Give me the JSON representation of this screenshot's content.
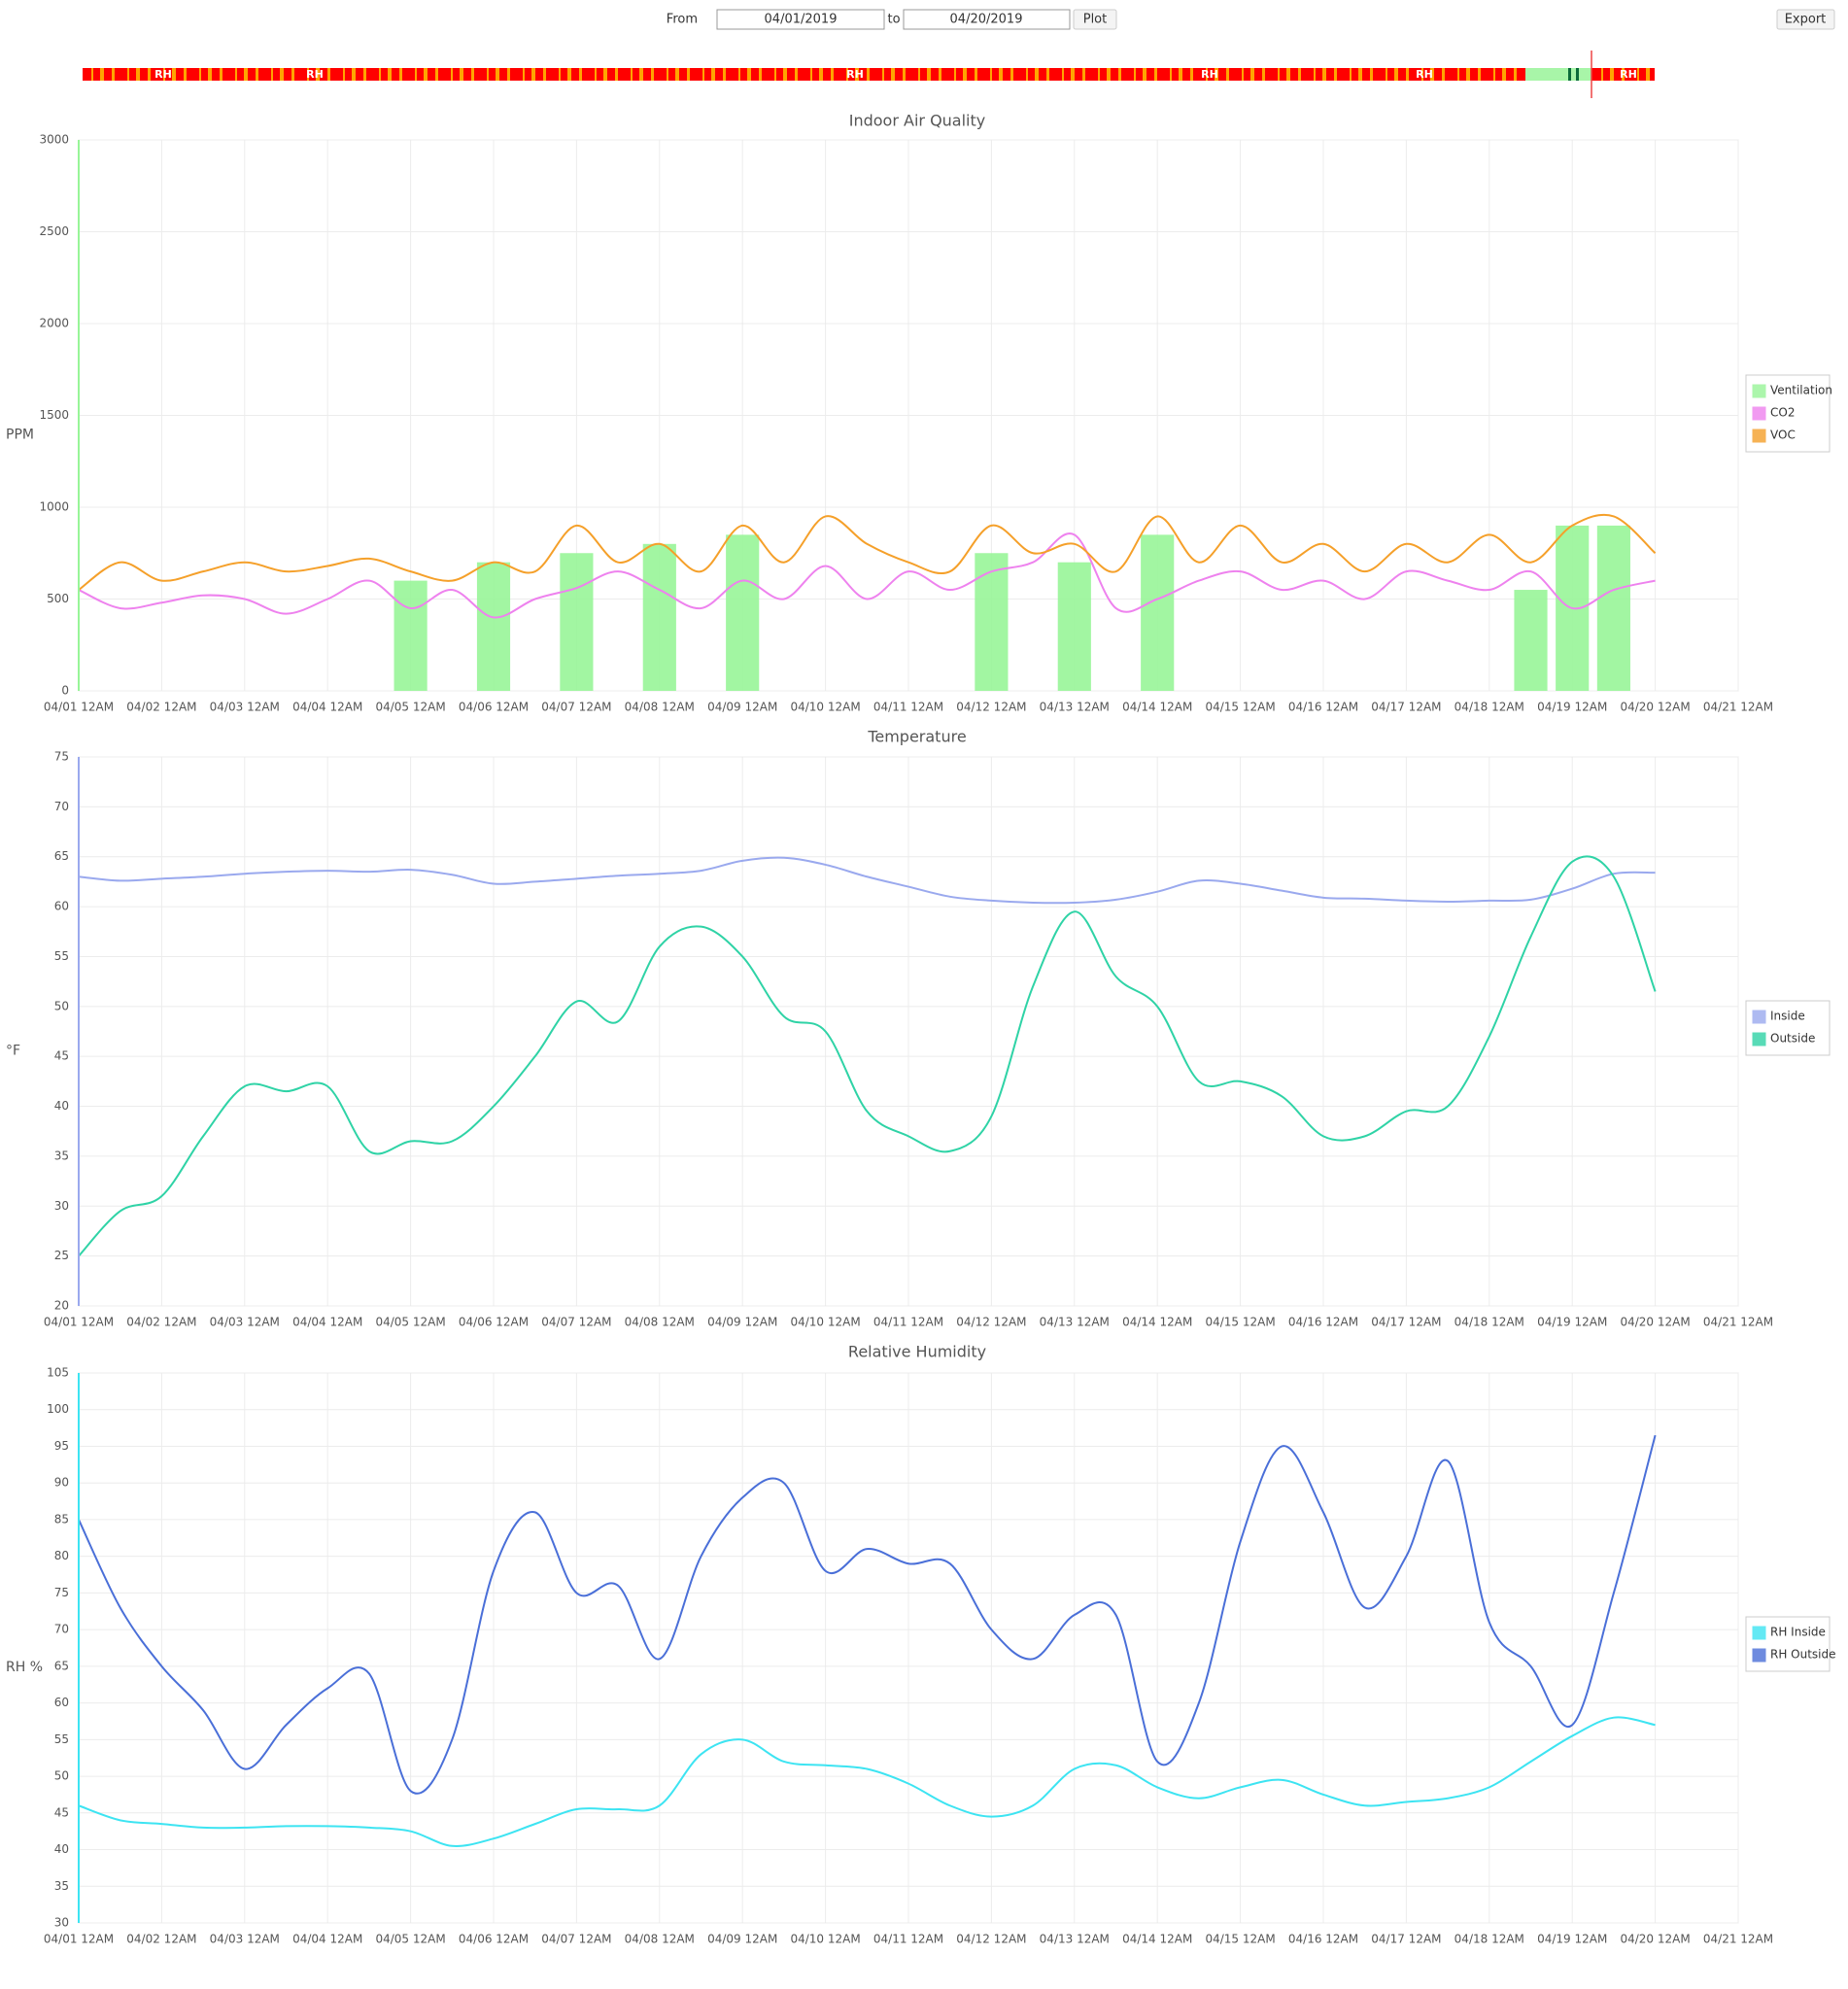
{
  "header": {
    "from_label": "From",
    "from_date": "04/01/2019",
    "to_label": "to",
    "to_date": "04/20/2019",
    "plot_button": "Plot",
    "export_button": "Export"
  },
  "status_bar": {
    "labels": [
      "RH",
      "RH",
      "RH",
      "RH",
      "RH",
      "RH"
    ]
  },
  "chart_data": [
    {
      "type": "line",
      "title": "Indoor Air Quality",
      "y_label": "PPM",
      "grid": true,
      "xlim": [
        "2019-04-01T00:00",
        "2019-04-21T00:00"
      ],
      "xticks": [
        {
          "value": "2019-04-01T00:00",
          "label": "04/01 12AM"
        },
        {
          "value": "2019-04-02T00:00",
          "label": "04/02 12AM"
        },
        {
          "value": "2019-04-03T00:00",
          "label": "04/03 12AM"
        },
        {
          "value": "2019-04-04T00:00",
          "label": "04/04 12AM"
        },
        {
          "value": "2019-04-05T00:00",
          "label": "04/05 12AM"
        },
        {
          "value": "2019-04-06T00:00",
          "label": "04/06 12AM"
        },
        {
          "value": "2019-04-07T00:00",
          "label": "04/07 12AM"
        },
        {
          "value": "2019-04-08T00:00",
          "label": "04/08 12AM"
        },
        {
          "value": "2019-04-09T00:00",
          "label": "04/09 12AM"
        },
        {
          "value": "2019-04-10T00:00",
          "label": "04/10 12AM"
        },
        {
          "value": "2019-04-11T00:00",
          "label": "04/11 12AM"
        },
        {
          "value": "2019-04-12T00:00",
          "label": "04/12 12AM"
        },
        {
          "value": "2019-04-13T00:00",
          "label": "04/13 12AM"
        },
        {
          "value": "2019-04-14T00:00",
          "label": "04/14 12AM"
        },
        {
          "value": "2019-04-15T00:00",
          "label": "04/15 12AM"
        },
        {
          "value": "2019-04-16T00:00",
          "label": "04/16 12AM"
        },
        {
          "value": "2019-04-17T00:00",
          "label": "04/17 12AM"
        },
        {
          "value": "2019-04-18T00:00",
          "label": "04/18 12AM"
        },
        {
          "value": "2019-04-19T00:00",
          "label": "04/19 12AM"
        },
        {
          "value": "2019-04-20T00:00",
          "label": "04/20 12AM"
        },
        {
          "value": "2019-04-21T00:00",
          "label": "04/21 12AM"
        }
      ],
      "ylim": [
        0,
        3000
      ],
      "yticks": [
        0,
        500,
        1000,
        1500,
        2000,
        2500,
        3000
      ],
      "x": [
        "2019-04-01T00:00",
        "2019-04-01T12:00",
        "2019-04-02T00:00",
        "2019-04-02T12:00",
        "2019-04-03T00:00",
        "2019-04-03T12:00",
        "2019-04-04T00:00",
        "2019-04-04T12:00",
        "2019-04-05T00:00",
        "2019-04-05T12:00",
        "2019-04-06T00:00",
        "2019-04-06T12:00",
        "2019-04-07T00:00",
        "2019-04-07T12:00",
        "2019-04-08T00:00",
        "2019-04-08T12:00",
        "2019-04-09T00:00",
        "2019-04-09T12:00",
        "2019-04-10T00:00",
        "2019-04-10T12:00",
        "2019-04-11T00:00",
        "2019-04-11T12:00",
        "2019-04-12T00:00",
        "2019-04-12T12:00",
        "2019-04-13T00:00",
        "2019-04-13T12:00",
        "2019-04-14T00:00",
        "2019-04-14T12:00",
        "2019-04-15T00:00",
        "2019-04-15T12:00",
        "2019-04-16T00:00",
        "2019-04-16T12:00",
        "2019-04-17T00:00",
        "2019-04-17T12:00",
        "2019-04-18T00:00",
        "2019-04-18T12:00",
        "2019-04-19T00:00",
        "2019-04-19T12:00",
        "2019-04-20T00:00"
      ],
      "series": [
        {
          "name": "Ventilation",
          "type": "area",
          "color": "#98f598",
          "values": [
            0,
            0,
            0,
            0,
            0,
            0,
            0,
            0,
            600,
            0,
            700,
            0,
            750,
            0,
            800,
            0,
            850,
            0,
            0,
            0,
            0,
            0,
            750,
            0,
            700,
            0,
            850,
            0,
            0,
            0,
            0,
            0,
            0,
            0,
            0,
            550,
            900,
            900,
            0
          ]
        },
        {
          "name": "CO2",
          "color": "#ee82ee",
          "values": [
            550,
            450,
            480,
            520,
            500,
            420,
            500,
            600,
            450,
            550,
            400,
            500,
            560,
            650,
            550,
            450,
            600,
            500,
            680,
            500,
            650,
            550,
            650,
            700,
            850,
            450,
            500,
            600,
            650,
            550,
            600,
            500,
            650,
            600,
            550,
            650,
            450,
            550,
            600
          ]
        },
        {
          "name": "VOC",
          "color": "#f5a02a",
          "values": [
            550,
            700,
            600,
            650,
            700,
            650,
            680,
            720,
            650,
            600,
            700,
            650,
            900,
            700,
            800,
            650,
            900,
            700,
            950,
            800,
            700,
            650,
            900,
            750,
            800,
            650,
            950,
            700,
            900,
            700,
            800,
            650,
            800,
            700,
            850,
            700,
            900,
            950,
            750
          ]
        }
      ]
    },
    {
      "type": "line",
      "title": "Temperature",
      "y_label": "°F",
      "grid": true,
      "xlim": [
        "2019-04-01T00:00",
        "2019-04-21T00:00"
      ],
      "xticks": [
        {
          "value": "2019-04-01T00:00",
          "label": "04/01 12AM"
        },
        {
          "value": "2019-04-02T00:00",
          "label": "04/02 12AM"
        },
        {
          "value": "2019-04-03T00:00",
          "label": "04/03 12AM"
        },
        {
          "value": "2019-04-04T00:00",
          "label": "04/04 12AM"
        },
        {
          "value": "2019-04-05T00:00",
          "label": "04/05 12AM"
        },
        {
          "value": "2019-04-06T00:00",
          "label": "04/06 12AM"
        },
        {
          "value": "2019-04-07T00:00",
          "label": "04/07 12AM"
        },
        {
          "value": "2019-04-08T00:00",
          "label": "04/08 12AM"
        },
        {
          "value": "2019-04-09T00:00",
          "label": "04/09 12AM"
        },
        {
          "value": "2019-04-10T00:00",
          "label": "04/10 12AM"
        },
        {
          "value": "2019-04-11T00:00",
          "label": "04/11 12AM"
        },
        {
          "value": "2019-04-12T00:00",
          "label": "04/12 12AM"
        },
        {
          "value": "2019-04-13T00:00",
          "label": "04/13 12AM"
        },
        {
          "value": "2019-04-14T00:00",
          "label": "04/14 12AM"
        },
        {
          "value": "2019-04-15T00:00",
          "label": "04/15 12AM"
        },
        {
          "value": "2019-04-16T00:00",
          "label": "04/16 12AM"
        },
        {
          "value": "2019-04-17T00:00",
          "label": "04/17 12AM"
        },
        {
          "value": "2019-04-18T00:00",
          "label": "04/18 12AM"
        },
        {
          "value": "2019-04-19T00:00",
          "label": "04/19 12AM"
        },
        {
          "value": "2019-04-20T00:00",
          "label": "04/20 12AM"
        },
        {
          "value": "2019-04-21T00:00",
          "label": "04/21 12AM"
        }
      ],
      "ylim": [
        20,
        75
      ],
      "yticks": [
        20,
        25,
        30,
        35,
        40,
        45,
        50,
        55,
        60,
        65,
        70,
        75
      ],
      "x": [
        "2019-04-01T00:00",
        "2019-04-01T12:00",
        "2019-04-02T00:00",
        "2019-04-02T12:00",
        "2019-04-03T00:00",
        "2019-04-03T12:00",
        "2019-04-04T00:00",
        "2019-04-04T12:00",
        "2019-04-05T00:00",
        "2019-04-05T12:00",
        "2019-04-06T00:00",
        "2019-04-06T12:00",
        "2019-04-07T00:00",
        "2019-04-07T12:00",
        "2019-04-08T00:00",
        "2019-04-08T12:00",
        "2019-04-09T00:00",
        "2019-04-09T12:00",
        "2019-04-10T00:00",
        "2019-04-10T12:00",
        "2019-04-11T00:00",
        "2019-04-11T12:00",
        "2019-04-12T00:00",
        "2019-04-12T12:00",
        "2019-04-13T00:00",
        "2019-04-13T12:00",
        "2019-04-14T00:00",
        "2019-04-14T12:00",
        "2019-04-15T00:00",
        "2019-04-15T12:00",
        "2019-04-16T00:00",
        "2019-04-16T12:00",
        "2019-04-17T00:00",
        "2019-04-17T12:00",
        "2019-04-18T00:00",
        "2019-04-18T12:00",
        "2019-04-19T00:00",
        "2019-04-19T12:00",
        "2019-04-20T00:00"
      ],
      "series": [
        {
          "name": "Inside",
          "color": "#9aa9ee",
          "values": [
            63,
            62.6,
            62.8,
            63,
            63.3,
            63.5,
            63.6,
            63.5,
            63.7,
            63.2,
            62.3,
            62.5,
            62.8,
            63.1,
            63.3,
            63.6,
            64.6,
            64.9,
            64.2,
            63,
            62,
            61,
            60.6,
            60.4,
            60.4,
            60.7,
            61.5,
            62.6,
            62.3,
            61.6,
            60.9,
            60.8,
            60.6,
            60.5,
            60.6,
            60.7,
            61.8,
            63.3,
            63.4
          ]
        },
        {
          "name": "Outside",
          "color": "#2fd3a6",
          "values": [
            25,
            29.5,
            31,
            37,
            42,
            41.5,
            42,
            35.5,
            36.5,
            36.5,
            40,
            45,
            50.5,
            48.5,
            56,
            58,
            55,
            49,
            47.5,
            39.5,
            37,
            35.5,
            39,
            52,
            59.5,
            53,
            50,
            42.5,
            42.5,
            41,
            37,
            37,
            39.5,
            40,
            47,
            57,
            64.5,
            63,
            51.5
          ]
        }
      ]
    },
    {
      "type": "line",
      "title": "Relative Humidity",
      "y_label": "RH %",
      "grid": true,
      "xlim": [
        "2019-04-01T00:00",
        "2019-04-21T00:00"
      ],
      "xticks": [
        {
          "value": "2019-04-01T00:00",
          "label": "04/01 12AM"
        },
        {
          "value": "2019-04-02T00:00",
          "label": "04/02 12AM"
        },
        {
          "value": "2019-04-03T00:00",
          "label": "04/03 12AM"
        },
        {
          "value": "2019-04-04T00:00",
          "label": "04/04 12AM"
        },
        {
          "value": "2019-04-05T00:00",
          "label": "04/05 12AM"
        },
        {
          "value": "2019-04-06T00:00",
          "label": "04/06 12AM"
        },
        {
          "value": "2019-04-07T00:00",
          "label": "04/07 12AM"
        },
        {
          "value": "2019-04-08T00:00",
          "label": "04/08 12AM"
        },
        {
          "value": "2019-04-09T00:00",
          "label": "04/09 12AM"
        },
        {
          "value": "2019-04-10T00:00",
          "label": "04/10 12AM"
        },
        {
          "value": "2019-04-11T00:00",
          "label": "04/11 12AM"
        },
        {
          "value": "2019-04-12T00:00",
          "label": "04/12 12AM"
        },
        {
          "value": "2019-04-13T00:00",
          "label": "04/13 12AM"
        },
        {
          "value": "2019-04-14T00:00",
          "label": "04/14 12AM"
        },
        {
          "value": "2019-04-15T00:00",
          "label": "04/15 12AM"
        },
        {
          "value": "2019-04-16T00:00",
          "label": "04/16 12AM"
        },
        {
          "value": "2019-04-17T00:00",
          "label": "04/17 12AM"
        },
        {
          "value": "2019-04-18T00:00",
          "label": "04/18 12AM"
        },
        {
          "value": "2019-04-19T00:00",
          "label": "04/19 12AM"
        },
        {
          "value": "2019-04-20T00:00",
          "label": "04/20 12AM"
        },
        {
          "value": "2019-04-21T00:00",
          "label": "04/21 12AM"
        }
      ],
      "ylim": [
        30,
        105
      ],
      "yticks": [
        30,
        35,
        40,
        45,
        50,
        55,
        60,
        65,
        70,
        75,
        80,
        85,
        90,
        95,
        100,
        105
      ],
      "x": [
        "2019-04-01T00:00",
        "2019-04-01T12:00",
        "2019-04-02T00:00",
        "2019-04-02T12:00",
        "2019-04-03T00:00",
        "2019-04-03T12:00",
        "2019-04-04T00:00",
        "2019-04-04T12:00",
        "2019-04-05T00:00",
        "2019-04-05T12:00",
        "2019-04-06T00:00",
        "2019-04-06T12:00",
        "2019-04-07T00:00",
        "2019-04-07T12:00",
        "2019-04-08T00:00",
        "2019-04-08T12:00",
        "2019-04-09T00:00",
        "2019-04-09T12:00",
        "2019-04-10T00:00",
        "2019-04-10T12:00",
        "2019-04-11T00:00",
        "2019-04-11T12:00",
        "2019-04-12T00:00",
        "2019-04-12T12:00",
        "2019-04-13T00:00",
        "2019-04-13T12:00",
        "2019-04-14T00:00",
        "2019-04-14T12:00",
        "2019-04-15T00:00",
        "2019-04-15T12:00",
        "2019-04-16T00:00",
        "2019-04-16T12:00",
        "2019-04-17T00:00",
        "2019-04-17T12:00",
        "2019-04-18T00:00",
        "2019-04-18T12:00",
        "2019-04-19T00:00",
        "2019-04-19T12:00",
        "2019-04-20T00:00"
      ],
      "series": [
        {
          "name": "RH Inside",
          "color": "#3de4f2",
          "values": [
            46,
            44,
            43.5,
            43,
            43,
            43.2,
            43.2,
            43,
            42.5,
            40.5,
            41.5,
            43.5,
            45.5,
            45.5,
            46,
            53,
            55,
            52,
            51.5,
            51,
            49,
            46,
            44.5,
            46,
            51,
            51.5,
            48.5,
            47,
            48.5,
            49.5,
            47.5,
            46,
            46.5,
            47,
            48.5,
            52,
            55.5,
            58,
            57
          ]
        },
        {
          "name": "RH Outside",
          "color": "#4a6fd8",
          "values": [
            85,
            73,
            65,
            59,
            51,
            57,
            62,
            64,
            48,
            55,
            78,
            86,
            75,
            76,
            66,
            80,
            88,
            90,
            78,
            81,
            79,
            79,
            70,
            66,
            72,
            72,
            52,
            60,
            82,
            95,
            86,
            73,
            80,
            93,
            71,
            65,
            57,
            75,
            96.5
          ]
        }
      ]
    }
  ]
}
